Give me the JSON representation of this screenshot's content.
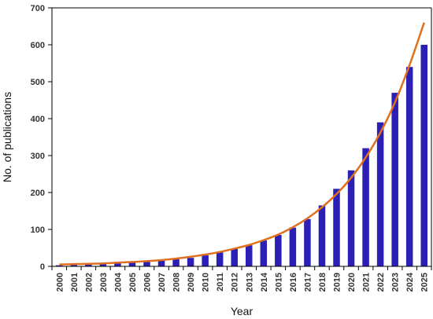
{
  "chart_data": {
    "type": "bar",
    "title": "",
    "xlabel": "Year",
    "ylabel": "No. of publications",
    "ylim": [
      0,
      700
    ],
    "yticks": [
      0,
      100,
      200,
      300,
      400,
      500,
      600,
      700
    ],
    "grid": false,
    "legend": "none",
    "categories": [
      "2000",
      "2001",
      "2002",
      "2003",
      "2004",
      "2005",
      "2006",
      "2007",
      "2008",
      "2009",
      "2010",
      "2011",
      "2012",
      "2013",
      "2014",
      "2015",
      "2016",
      "2017",
      "2018",
      "2019",
      "2020",
      "2021",
      "2022",
      "2023",
      "2024",
      "2025"
    ],
    "series": [
      {
        "type": "bar",
        "color": "#2b1fb5",
        "values": [
          3,
          4,
          5,
          6,
          8,
          10,
          12,
          15,
          19,
          23,
          30,
          38,
          47,
          57,
          70,
          85,
          105,
          128,
          165,
          210,
          260,
          320,
          390,
          470,
          540,
          600
        ]
      },
      {
        "type": "line",
        "color": "#e0701f",
        "values": [
          5,
          6,
          7,
          8,
          10,
          12,
          14,
          17,
          21,
          26,
          32,
          39,
          48,
          58,
          71,
          86,
          106,
          130,
          160,
          196,
          240,
          295,
          362,
          444,
          545,
          660
        ]
      }
    ]
  }
}
